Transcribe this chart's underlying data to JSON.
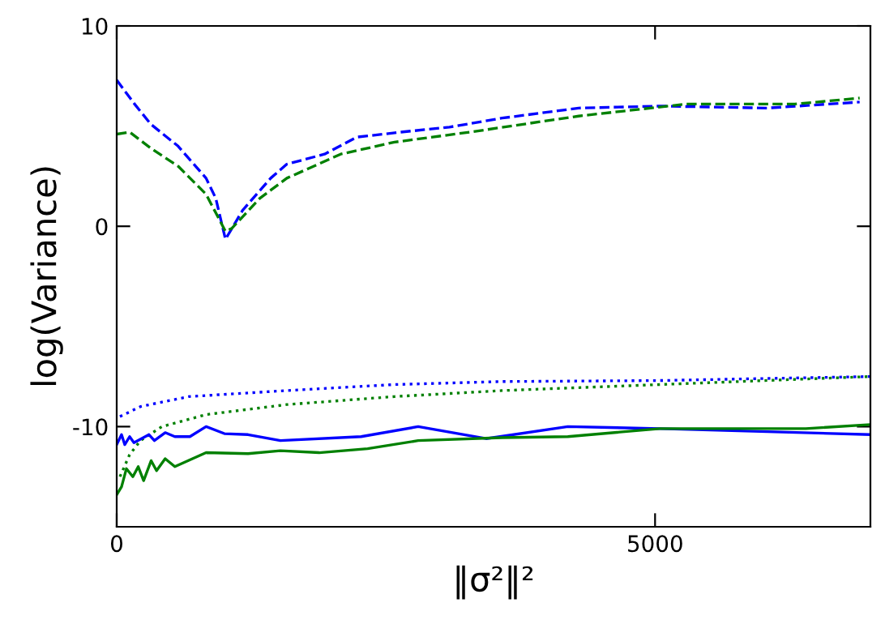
{
  "chart_data": {
    "type": "line",
    "xlabel": "‖σ²‖²",
    "ylabel": "log(Variance)",
    "xlim": [
      0,
      7000
    ],
    "ylim": [
      -15,
      10
    ],
    "xticks": [
      0,
      5000
    ],
    "yticks": [
      -10,
      0,
      10
    ],
    "grid": false,
    "legend": false,
    "series": [
      {
        "color": "#0000ff",
        "line_style": "dashed",
        "x": [
          0,
          166,
          316,
          570,
          830,
          920,
          1010,
          1170,
          1430,
          1580,
          1930,
          2230,
          2640,
          3090,
          3580,
          4290,
          5045,
          6040,
          6900
        ],
        "values": [
          7.3,
          6.1,
          5.1,
          4.0,
          2.4,
          1.4,
          -0.65,
          0.8,
          2.4,
          3.1,
          3.6,
          4.45,
          4.7,
          4.95,
          5.4,
          5.9,
          6.0,
          5.9,
          6.2
        ]
      },
      {
        "color": "#008000",
        "line_style": "dashed",
        "x": [
          0,
          120,
          316,
          570,
          830,
          1010,
          1070,
          1330,
          1580,
          2080,
          2580,
          3280,
          4290,
          5290,
          6300,
          6900
        ],
        "values": [
          4.6,
          4.7,
          3.9,
          3.0,
          1.6,
          -0.25,
          -0.1,
          1.4,
          2.4,
          3.6,
          4.2,
          4.7,
          5.5,
          6.1,
          6.1,
          6.4
        ]
      },
      {
        "color": "#0000ff",
        "line_style": "dotted",
        "x": [
          30,
          220,
          670,
          1580,
          2580,
          3580,
          5045,
          7000
        ],
        "values": [
          -9.5,
          -9.0,
          -8.5,
          -8.2,
          -7.9,
          -7.75,
          -7.7,
          -7.5
        ]
      },
      {
        "color": "#008000",
        "line_style": "dotted",
        "x": [
          30,
          120,
          220,
          420,
          830,
          1580,
          2580,
          3580,
          5045,
          7000
        ],
        "values": [
          -12.5,
          -11.4,
          -10.7,
          -10.0,
          -9.4,
          -8.9,
          -8.5,
          -8.2,
          -7.9,
          -7.5
        ]
      },
      {
        "color": "#0000ff",
        "line_style": "solid",
        "x": [
          0,
          45,
          75,
          120,
          160,
          300,
          350,
          450,
          540,
          680,
          830,
          1000,
          1220,
          1520,
          2270,
          2800,
          3430,
          4190,
          5045,
          7000
        ],
        "values": [
          -10.9,
          -10.4,
          -10.9,
          -10.5,
          -10.8,
          -10.4,
          -10.7,
          -10.3,
          -10.5,
          -10.5,
          -10.0,
          -10.35,
          -10.4,
          -10.7,
          -10.5,
          -10.0,
          -10.6,
          -10.0,
          -10.1,
          -10.4
        ]
      },
      {
        "color": "#008000",
        "line_style": "solid",
        "x": [
          0,
          45,
          90,
          150,
          200,
          250,
          320,
          370,
          450,
          540,
          830,
          1220,
          1520,
          1880,
          2330,
          2800,
          3580,
          4190,
          5045,
          6400,
          7000
        ],
        "values": [
          -13.4,
          -13.0,
          -12.1,
          -12.5,
          -12.0,
          -12.7,
          -11.7,
          -12.2,
          -11.6,
          -12.0,
          -11.3,
          -11.35,
          -11.2,
          -11.3,
          -11.1,
          -10.7,
          -10.55,
          -10.5,
          -10.1,
          -10.1,
          -9.9
        ]
      }
    ]
  }
}
